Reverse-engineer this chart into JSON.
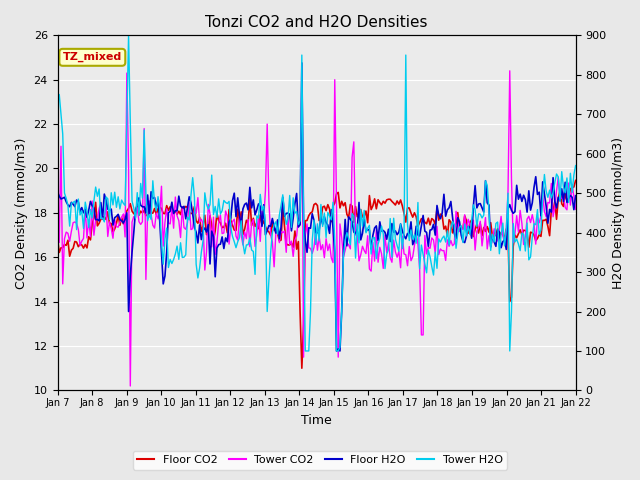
{
  "title": "Tonzi CO2 and H2O Densities",
  "xlabel": "Time",
  "ylabel_left": "CO2 Density (mmol/m3)",
  "ylabel_right": "H2O Density (mmol/m3)",
  "annotation": "TZ_mixed",
  "annotation_color": "#cc0000",
  "annotation_bg": "#ffffcc",
  "annotation_border": "#aaaa00",
  "x_tick_labels": [
    "Jan 7",
    "Jan 8",
    "Jan 9",
    "Jan 10",
    "Jan 11",
    "Jan 12",
    "Jan 13",
    "Jan 14",
    "Jan 15",
    "Jan 16",
    "Jan 17",
    "Jan 18",
    "Jan 19",
    "Jan 20",
    "Jan 21",
    "Jan 22"
  ],
  "ylim_left": [
    10,
    26
  ],
  "ylim_right": [
    0,
    900
  ],
  "yticks_left": [
    10,
    12,
    14,
    16,
    18,
    20,
    22,
    24,
    26
  ],
  "yticks_right": [
    0,
    100,
    200,
    300,
    400,
    500,
    600,
    700,
    800,
    900
  ],
  "bg_color": "#e8e8e8",
  "plot_bg_color": "#ebebeb",
  "grid_color": "#ffffff",
  "floor_co2_color": "#dd0000",
  "tower_co2_color": "#ff00ff",
  "floor_h2o_color": "#0000cc",
  "tower_h2o_color": "#00ccee",
  "legend_labels": [
    "Floor CO2",
    "Tower CO2",
    "Floor H2O",
    "Tower H2O"
  ]
}
